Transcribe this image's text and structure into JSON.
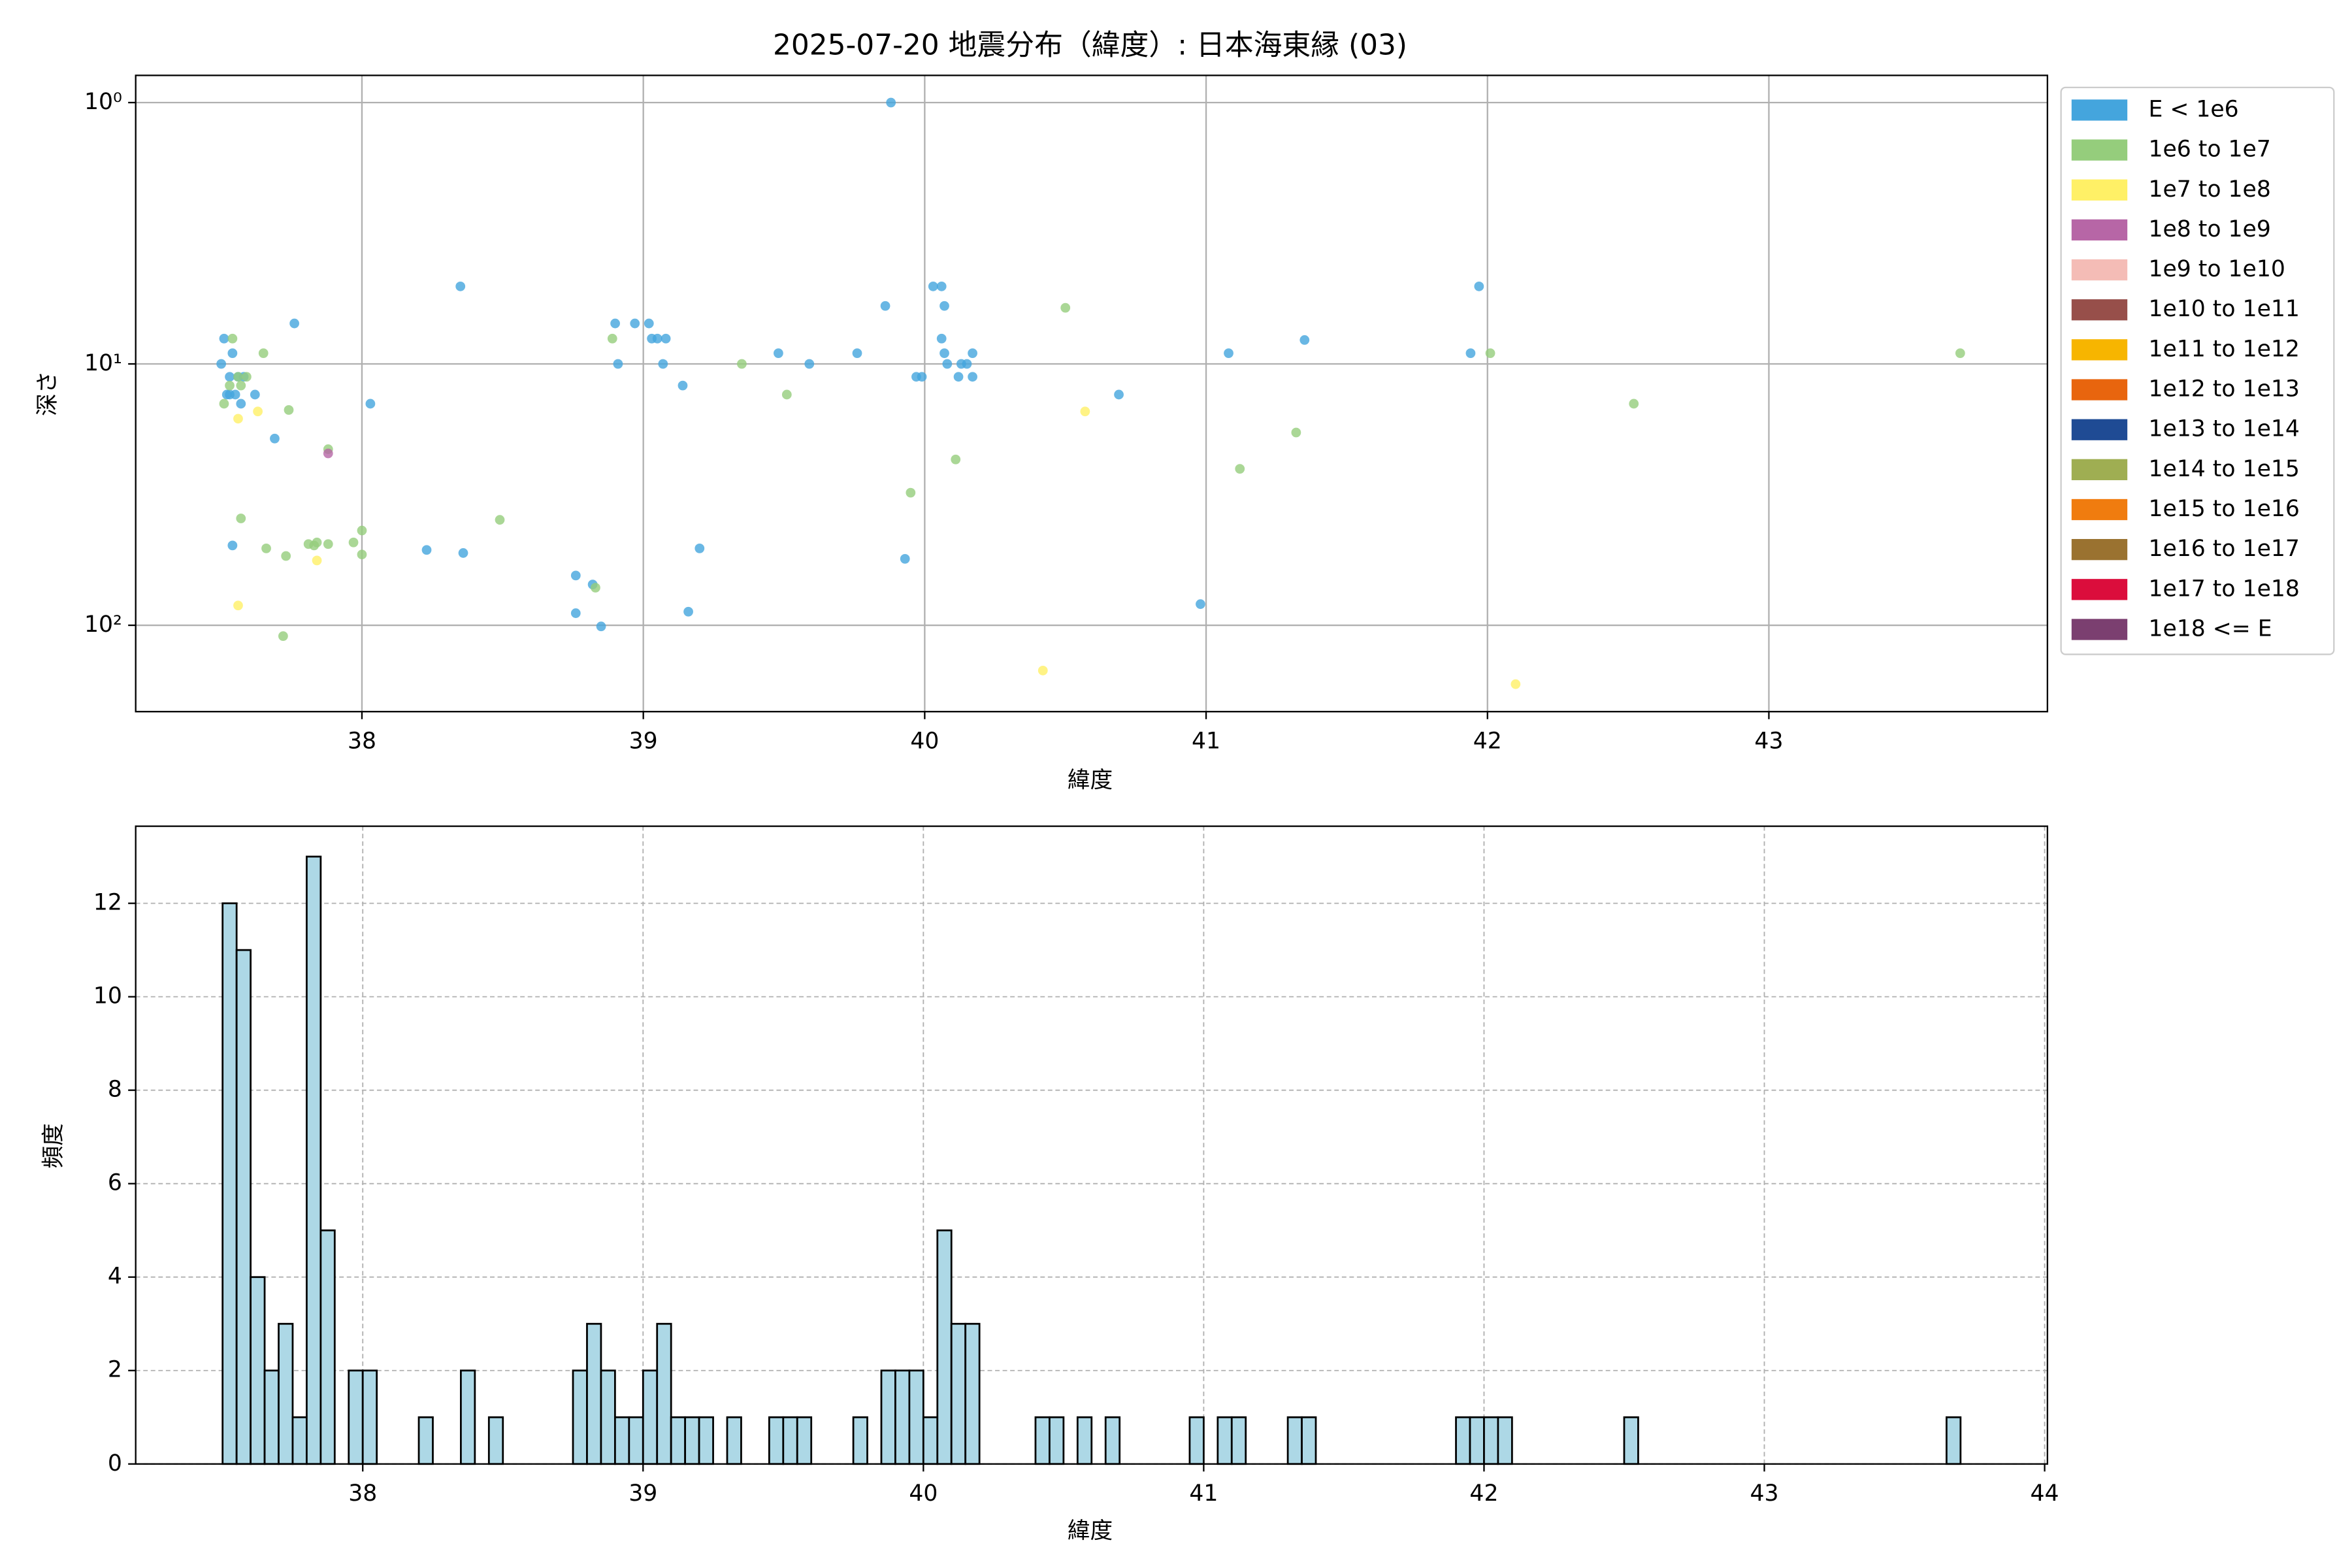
{
  "chart_data": [
    {
      "type": "scatter",
      "title": "2025-07-20 地震分布（緯度）: 日本海東縁 (03)",
      "x_label": "緯度",
      "y_label": "深さ",
      "xlim": [
        37.196,
        43.99
      ],
      "xticks": [
        38,
        39,
        40,
        41,
        42,
        43
      ],
      "ylim": [
        214,
        0.787
      ],
      "yscale": "log",
      "yticks": [
        {
          "value": 1,
          "label": "10⁰"
        },
        {
          "value": 10,
          "label": "10¹"
        },
        {
          "value": 100,
          "label": "10²"
        }
      ],
      "grid": true,
      "legend": "outside right",
      "series": [
        {
          "name": "E < 1e6",
          "color": "#44a5dd",
          "x": [
            37.5,
            37.51,
            37.53,
            37.52,
            37.53,
            37.54,
            37.55,
            37.56,
            37.58,
            37.57,
            37.62,
            37.69,
            37.76,
            38.03,
            38.35,
            38.23,
            38.36,
            37.54,
            38.76,
            38.76,
            38.82,
            38.85,
            38.9,
            38.91,
            38.97,
            39.02,
            39.03,
            39.05,
            39.08,
            39.07,
            39.14,
            39.2,
            39.16,
            39.48,
            39.59,
            39.76,
            39.86,
            39.88,
            39.93,
            39.97,
            39.99,
            40.03,
            40.06,
            40.07,
            40.06,
            40.07,
            40.08,
            40.12,
            40.15,
            40.17,
            40.17,
            40.13,
            40.69,
            40.98,
            41.08,
            41.35,
            41.94,
            41.97
          ],
          "y": [
            10,
            8.0,
            11.2,
            13.1,
            13.1,
            9.1,
            13.1,
            11.2,
            11.2,
            14.2,
            13.1,
            19.3,
            7.0,
            14.2,
            5.05,
            51.5,
            52.9,
            49.5,
            64.5,
            89.9,
            69.8,
            101,
            7.0,
            10,
            7.0,
            7.0,
            8.0,
            8.0,
            8.0,
            10,
            12.1,
            50.8,
            88.7,
            9.1,
            10,
            9.1,
            6.0,
            1.0,
            55.7,
            11.2,
            11.2,
            5.05,
            5.05,
            6.0,
            8.0,
            9.1,
            10,
            11.2,
            10,
            11.2,
            9.1,
            10,
            13.1,
            83,
            9.1,
            8.1,
            9.1,
            5.05
          ]
        },
        {
          "name": "1e6 to 1e7",
          "color": "#95cd7c",
          "x": [
            37.51,
            37.53,
            37.54,
            37.56,
            37.57,
            37.59,
            37.65,
            37.57,
            37.66,
            37.73,
            37.74,
            37.88,
            37.81,
            37.83,
            37.84,
            37.88,
            37.97,
            38.0,
            38.0,
            38.49,
            38.83,
            38.89,
            39.35,
            39.51,
            39.95,
            40.11,
            40.5,
            41.12,
            41.32,
            42.01,
            42.52,
            43.68,
            37.72
          ],
          "y": [
            14.2,
            12.1,
            8.0,
            11.2,
            12.1,
            11.2,
            9.1,
            39,
            50.8,
            54.3,
            15.0,
            21.2,
            48.9,
            49.5,
            48.2,
            48.9,
            48.2,
            43.4,
            53.6,
            39.5,
            71.8,
            8.0,
            10,
            13.1,
            31.1,
            23.2,
            6.1,
            25.2,
            18.3,
            9.1,
            14.2,
            9.1,
            110
          ]
        },
        {
          "name": "1e7 to 1e8",
          "color": "#fff066",
          "x": [
            37.56,
            37.63,
            37.84,
            37.56,
            40.42,
            40.57,
            42.1
          ],
          "y": [
            16.2,
            15.2,
            56.5,
            84,
            149,
            15.2,
            168
          ]
        },
        {
          "name": "1e8 to 1e9",
          "color": "#b766a6",
          "x": [
            37.88
          ],
          "y": [
            22.0
          ]
        },
        {
          "name": "1e9 to 1e10",
          "color": "#f4bcb6",
          "x": [],
          "y": []
        },
        {
          "name": "1e10 to 1e11",
          "color": "#974f4a",
          "x": [],
          "y": []
        },
        {
          "name": "1e11 to 1e12",
          "color": "#f7b500",
          "x": [],
          "y": []
        },
        {
          "name": "1e12 to 1e13",
          "color": "#e8650e",
          "x": [],
          "y": []
        },
        {
          "name": "1e13 to 1e14",
          "color": "#1f4b94",
          "x": [],
          "y": []
        },
        {
          "name": "1e14 to 1e15",
          "color": "#9fae52",
          "x": [],
          "y": []
        },
        {
          "name": "1e15 to 1e16",
          "color": "#f07c0f",
          "x": [],
          "y": []
        },
        {
          "name": "1e16 to 1e17",
          "color": "#9a7230",
          "x": [],
          "y": []
        },
        {
          "name": "1e17 to 1e18",
          "color": "#db0d3c",
          "x": [],
          "y": []
        },
        {
          "name": "1e18 <= E",
          "color": "#7b3f70",
          "x": [],
          "y": []
        }
      ]
    },
    {
      "type": "histogram",
      "x_label": "緯度",
      "y_label": "頻度",
      "color": "#add8e6",
      "xlim": [
        37.19,
        44.01
      ],
      "xticks": [
        38,
        39,
        40,
        41,
        42,
        43,
        44
      ],
      "ylim": [
        0,
        13.65
      ],
      "yticks": [
        0,
        2,
        4,
        6,
        8,
        10,
        12
      ],
      "grid": true,
      "bins": [
        37.5,
        37.55,
        37.6,
        37.65,
        37.7,
        37.75,
        37.8,
        37.85,
        37.9,
        37.95,
        38.0,
        38.05,
        38.1,
        38.15,
        38.2,
        38.25,
        38.3,
        38.35,
        38.4,
        38.45,
        38.5,
        38.55,
        38.6,
        38.65,
        38.7,
        38.75,
        38.8,
        38.85,
        38.9,
        38.95,
        39.0,
        39.05,
        39.1,
        39.15,
        39.2,
        39.25,
        39.3,
        39.35,
        39.4,
        39.45,
        39.5,
        39.55,
        39.6,
        39.65,
        39.7,
        39.75,
        39.8,
        39.85,
        39.9,
        39.95,
        40.0,
        40.05,
        40.1,
        40.15,
        40.2,
        40.25,
        40.3,
        40.35,
        40.4,
        40.45,
        40.5,
        40.55,
        40.6,
        40.65,
        40.7,
        40.75,
        40.8,
        40.85,
        40.9,
        40.95,
        41.0,
        41.05,
        41.1,
        41.15,
        41.2,
        41.25,
        41.3,
        41.35,
        41.4,
        41.45,
        41.5,
        41.55,
        41.6,
        41.65,
        41.7,
        41.75,
        41.8,
        41.85,
        41.9,
        41.95,
        42.0,
        42.05,
        42.1,
        42.15,
        42.2,
        42.25,
        42.3,
        42.35,
        42.4,
        42.45,
        42.5,
        42.55,
        42.6,
        42.65,
        42.7,
        42.75,
        42.8,
        42.85,
        42.9,
        42.95,
        43.0,
        43.05,
        43.1,
        43.15,
        43.2,
        43.25,
        43.3,
        43.35,
        43.4,
        43.45,
        43.5,
        43.55,
        43.6,
        43.65,
        43.7
      ],
      "values": [
        12,
        11,
        4,
        2,
        3,
        1,
        13,
        5,
        0,
        2,
        2,
        0,
        0,
        0,
        1,
        0,
        0,
        2,
        0,
        1,
        0,
        0,
        0,
        0,
        0,
        2,
        3,
        2,
        1,
        1,
        2,
        3,
        1,
        1,
        1,
        0,
        1,
        0,
        0,
        1,
        1,
        1,
        0,
        0,
        0,
        1,
        0,
        2,
        2,
        2,
        1,
        5,
        3,
        3,
        0,
        0,
        0,
        0,
        1,
        1,
        0,
        1,
        0,
        1,
        0,
        0,
        0,
        0,
        0,
        1,
        0,
        1,
        1,
        0,
        0,
        0,
        1,
        1,
        0,
        0,
        0,
        0,
        0,
        0,
        0,
        0,
        0,
        0,
        1,
        1,
        1,
        1,
        0,
        0,
        0,
        0,
        0,
        0,
        0,
        0,
        1,
        0,
        0,
        0,
        0,
        0,
        0,
        0,
        0,
        0,
        0,
        0,
        0,
        0,
        0,
        0,
        0,
        0,
        0,
        0,
        0,
        0,
        0,
        1
      ]
    }
  ]
}
